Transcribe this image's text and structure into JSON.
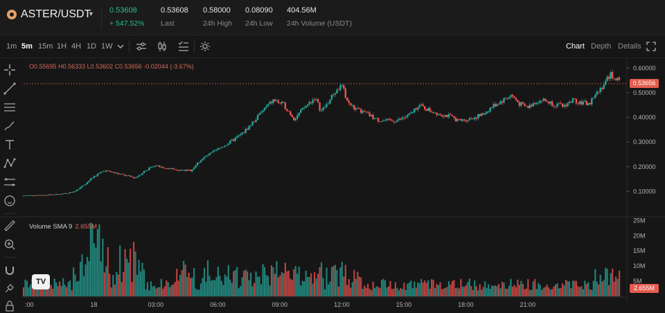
{
  "header": {
    "pair": "ASTER/USDT",
    "price": "0.53608",
    "change": "+ 547.52%",
    "stats": [
      {
        "value": "0.53608",
        "label": "Last"
      },
      {
        "value": "0.58000",
        "label": "24h High"
      },
      {
        "value": "0.08090",
        "label": "24h Low"
      },
      {
        "value": "404.56M",
        "label": "24h Volume (USDT)"
      }
    ]
  },
  "toolbar": {
    "timeframes": [
      "1m",
      "5m",
      "15m",
      "1H",
      "4H",
      "1D",
      "1W"
    ],
    "active_timeframe": "5m",
    "views": [
      "Chart",
      "Depth",
      "Details"
    ],
    "active_view": "Chart"
  },
  "ohlc": {
    "open": "O0.55695",
    "high": "H0.56333",
    "low": "L0.53602",
    "close": "C0.53656",
    "change": "-0.02044 (-3.67%)"
  },
  "volume_legend": {
    "label": "Volume SMA 9",
    "value": "2.655M"
  },
  "price_tag": "0.53656",
  "volume_tag": "2.655M",
  "watermark": "TV",
  "colors": {
    "up": "#26a69a",
    "down": "#ef5350",
    "accent": "#e45c4e",
    "background": "#161616"
  },
  "chart_data": {
    "type": "candlestick",
    "price_axis": {
      "ticks": [
        "0.60000",
        "0.50000",
        "0.40000",
        "0.30000",
        "0.20000",
        "0.10000"
      ],
      "tick_values": [
        0.6,
        0.5,
        0.4,
        0.3,
        0.2,
        0.1
      ]
    },
    "volume_axis": {
      "ticks": [
        "25M",
        "20M",
        "15M",
        "10M",
        "5M"
      ],
      "tick_values": [
        25,
        20,
        15,
        10,
        5
      ]
    },
    "time_axis": {
      "ticks": [
        ":00",
        "18",
        "03:00",
        "06:00",
        "09:00",
        "12:00",
        "15:00",
        "18:00",
        "21:00"
      ],
      "tick_hours": [
        21,
        24,
        27,
        30,
        33,
        36,
        39,
        42,
        45
      ]
    },
    "time_range_hours": [
      20.6,
      49.8
    ],
    "price_range": [
      0.0,
      0.64
    ],
    "volume_range": [
      0,
      26
    ],
    "last_price": 0.53656,
    "anchors": [
      [
        20.6,
        0.083
      ],
      [
        21.5,
        0.085
      ],
      [
        22.3,
        0.088
      ],
      [
        23.0,
        0.098
      ],
      [
        23.5,
        0.125
      ],
      [
        24.0,
        0.16
      ],
      [
        24.5,
        0.185
      ],
      [
        25.0,
        0.175
      ],
      [
        25.5,
        0.165
      ],
      [
        26.0,
        0.155
      ],
      [
        26.5,
        0.185
      ],
      [
        27.0,
        0.205
      ],
      [
        27.5,
        0.195
      ],
      [
        28.2,
        0.185
      ],
      [
        28.7,
        0.185
      ],
      [
        29.2,
        0.23
      ],
      [
        30.0,
        0.27
      ],
      [
        30.6,
        0.3
      ],
      [
        31.2,
        0.335
      ],
      [
        31.7,
        0.38
      ],
      [
        32.2,
        0.43
      ],
      [
        32.7,
        0.47
      ],
      [
        33.2,
        0.45
      ],
      [
        33.7,
        0.395
      ],
      [
        34.2,
        0.44
      ],
      [
        34.7,
        0.48
      ],
      [
        35.0,
        0.425
      ],
      [
        35.3,
        0.455
      ],
      [
        35.6,
        0.495
      ],
      [
        36.0,
        0.53
      ],
      [
        36.3,
        0.46
      ],
      [
        36.7,
        0.43
      ],
      [
        37.2,
        0.415
      ],
      [
        37.7,
        0.39
      ],
      [
        38.3,
        0.385
      ],
      [
        38.8,
        0.39
      ],
      [
        39.3,
        0.41
      ],
      [
        39.7,
        0.45
      ],
      [
        40.2,
        0.43
      ],
      [
        40.7,
        0.415
      ],
      [
        41.2,
        0.405
      ],
      [
        41.7,
        0.385
      ],
      [
        42.2,
        0.395
      ],
      [
        42.8,
        0.41
      ],
      [
        43.3,
        0.445
      ],
      [
        43.8,
        0.47
      ],
      [
        44.2,
        0.49
      ],
      [
        44.6,
        0.455
      ],
      [
        45.0,
        0.44
      ],
      [
        45.4,
        0.465
      ],
      [
        45.8,
        0.47
      ],
      [
        46.2,
        0.455
      ],
      [
        46.7,
        0.445
      ],
      [
        47.2,
        0.47
      ],
      [
        47.6,
        0.46
      ],
      [
        48.0,
        0.455
      ],
      [
        48.3,
        0.5
      ],
      [
        48.7,
        0.535
      ],
      [
        49.0,
        0.575
      ],
      [
        49.3,
        0.555
      ],
      [
        49.5,
        0.537
      ]
    ]
  }
}
